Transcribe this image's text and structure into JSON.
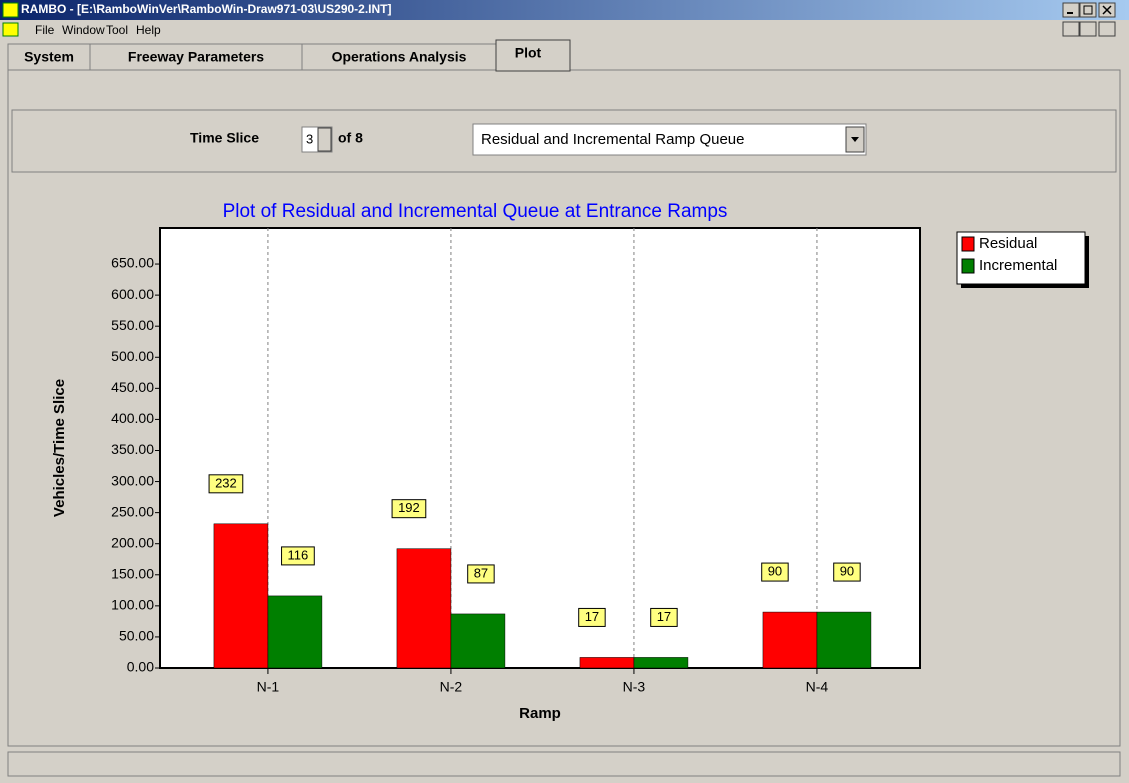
{
  "window": {
    "title": "RAMBO - [E:\\RamboWinVer\\RamboWin-Draw971-03\\US290-2.INT]",
    "menu": [
      "File",
      "Window",
      "Tool",
      "Help"
    ],
    "tabs": [
      "System",
      "Freeway Parameters",
      "Operations Analysis",
      "Plot"
    ]
  },
  "controls": {
    "time_slice_label": "Time Slice",
    "time_slice_value": "3",
    "of_label": "of 8",
    "plot_select": "Residual and Incremental Ramp Queue"
  },
  "chart_data": {
    "type": "bar",
    "title": "Plot of Residual and Incremental Queue at Entrance Ramps",
    "x_label": "Ramp",
    "y_label": "Vehicles/Time Slice",
    "categories": [
      "N-1",
      "N-2",
      "N-3",
      "N-4"
    ],
    "series": [
      {
        "name": "Residual",
        "color": "#ff0000",
        "values": [
          232,
          192,
          17,
          90
        ]
      },
      {
        "name": "Incremental",
        "color": "#007f00",
        "values": [
          116,
          87,
          17,
          90
        ]
      }
    ],
    "ylim": [
      0,
      708
    ],
    "yticks": [
      {
        "value": 0,
        "label": "0.00"
      },
      {
        "value": 50,
        "label": "50.00"
      },
      {
        "value": 100,
        "label": "100.00"
      },
      {
        "value": 150,
        "label": "150.00"
      },
      {
        "value": 200,
        "label": "200.00"
      },
      {
        "value": 250,
        "label": "250.00"
      },
      {
        "value": 300,
        "label": "300.00"
      },
      {
        "value": 350,
        "label": "350.00"
      },
      {
        "value": 400,
        "label": "400.00"
      },
      {
        "value": 450,
        "label": "450.00"
      },
      {
        "value": 500,
        "label": "500.00"
      },
      {
        "value": 550,
        "label": "550.00"
      },
      {
        "value": 600,
        "label": "600.00"
      },
      {
        "value": 650,
        "label": "650.00"
      }
    ],
    "legend": "right",
    "grid": "category"
  }
}
